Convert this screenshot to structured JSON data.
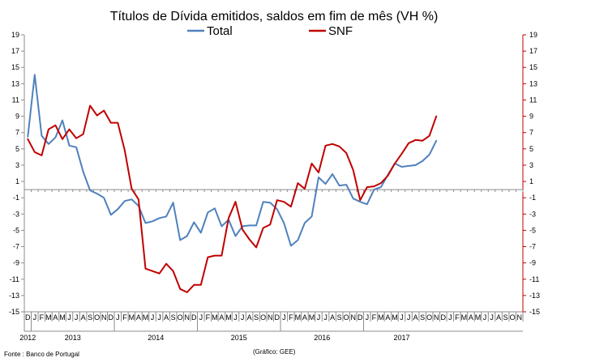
{
  "chart_data": {
    "type": "line",
    "title": "Títulos de Dívida emitidos, saldos em fim de mês  (VH %)",
    "ylim": [
      -15,
      19
    ],
    "yticks": [
      -15,
      -13,
      -11,
      -9,
      -7,
      -5,
      -3,
      -1,
      1,
      3,
      5,
      7,
      9,
      11,
      13,
      15,
      17,
      19
    ],
    "month_labels": [
      "D",
      "J",
      "F",
      "M",
      "A",
      "M",
      "J",
      "J",
      "A",
      "S",
      "O",
      "N",
      "D",
      "J",
      "F",
      "M",
      "A",
      "M",
      "J",
      "J",
      "A",
      "S",
      "O",
      "N",
      "D",
      "J",
      "F",
      "M",
      "A",
      "M",
      "J",
      "J",
      "A",
      "S",
      "O",
      "N",
      "D",
      "J",
      "F",
      "M",
      "A",
      "M",
      "J",
      "J",
      "A",
      "S",
      "O",
      "N",
      "D",
      "J",
      "F",
      "M",
      "A",
      "M",
      "J",
      "J",
      "A",
      "S",
      "O",
      "N",
      "D",
      "J",
      "F",
      "M",
      "A",
      "M",
      "J",
      "J",
      "A",
      "S",
      "O",
      "N"
    ],
    "years": [
      {
        "label": "2012",
        "first_index": 0,
        "last_index": 0
      },
      {
        "label": "2013",
        "first_index": 1,
        "last_index": 12
      },
      {
        "label": "2014",
        "first_index": 13,
        "last_index": 24
      },
      {
        "label": "2015",
        "first_index": 25,
        "last_index": 36
      },
      {
        "label": "2016",
        "first_index": 37,
        "last_index": 48
      },
      {
        "label": "2017",
        "first_index": 49,
        "last_index": 59
      }
    ],
    "series": [
      {
        "name": "Total",
        "color": "#4f81bd",
        "values": [
          6.5,
          14.1,
          6.6,
          5.6,
          6.4,
          8.5,
          5.4,
          5.2,
          2.2,
          -0.1,
          -0.5,
          -1.0,
          -3.1,
          -2.4,
          -1.4,
          -1.2,
          -2.0,
          -4.1,
          -3.9,
          -3.5,
          -3.3,
          -1.6,
          -6.2,
          -5.7,
          -4.0,
          -5.3,
          -2.8,
          -2.3,
          -4.5,
          -3.7,
          -5.7,
          -4.5,
          -4.4,
          -4.4,
          -1.5,
          -1.6,
          -2.4,
          -4.1,
          -6.9,
          -6.2,
          -4.1,
          -3.3,
          1.5,
          0.7,
          1.9,
          0.5,
          0.6,
          -1.1,
          -1.5,
          -1.8,
          0.0,
          0.3,
          1.8,
          3.2,
          2.8,
          2.9,
          3.0,
          3.5,
          4.3,
          6.0
        ]
      },
      {
        "name": "SNF",
        "color": "#c00000",
        "values": [
          6.2,
          4.6,
          4.2,
          7.4,
          7.9,
          6.2,
          7.4,
          6.3,
          6.8,
          10.3,
          9.1,
          9.7,
          8.2,
          8.2,
          4.8,
          0.1,
          -1.2,
          -9.7,
          -10.0,
          -10.3,
          -9.1,
          -10.0,
          -12.2,
          -12.6,
          -11.7,
          -11.7,
          -8.3,
          -8.1,
          -8.1,
          -3.5,
          -1.5,
          -4.9,
          -6.1,
          -7.1,
          -4.7,
          -4.3,
          -1.3,
          -1.5,
          -2.1,
          0.8,
          0.1,
          3.2,
          2.1,
          5.4,
          5.6,
          5.3,
          4.5,
          2.4,
          -1.3,
          0.3,
          0.4,
          0.8,
          1.7,
          3.2,
          4.4,
          5.7,
          6.1,
          6.0,
          6.6,
          9.0
        ]
      }
    ]
  },
  "source_note": "Fonte : Banco de Portugal",
  "credit_note": "(Gráfico: GEE)"
}
